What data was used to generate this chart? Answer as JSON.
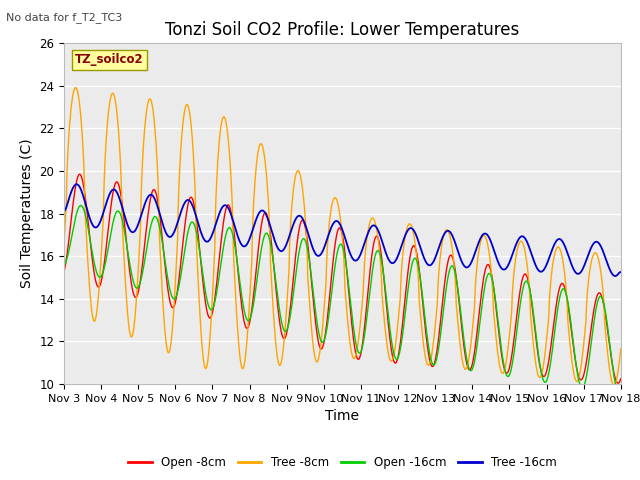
{
  "title": "Tonzi Soil CO2 Profile: Lower Temperatures",
  "subtitle": "No data for f_T2_TC3",
  "dataset_label": "TZ_soilco2",
  "xlabel": "Time",
  "ylabel": "Soil Temperatures (C)",
  "ylim": [
    10,
    26
  ],
  "xlim": [
    0,
    15
  ],
  "xtick_labels": [
    "Nov 3",
    "Nov 4",
    "Nov 5",
    "Nov 6",
    "Nov 7",
    "Nov 8",
    "Nov 9",
    "Nov 10",
    "Nov 11",
    "Nov 12",
    "Nov 13",
    "Nov 14",
    "Nov 15",
    "Nov 16",
    "Nov 17",
    "Nov 18"
  ],
  "xtick_positions": [
    0,
    1,
    2,
    3,
    4,
    5,
    6,
    7,
    8,
    9,
    10,
    11,
    12,
    13,
    14,
    15
  ],
  "colors": {
    "open_8cm": "#FF0000",
    "tree_8cm": "#FFA500",
    "open_16cm": "#00CC00",
    "tree_16cm": "#0000CC"
  },
  "legend_labels": [
    "Open -8cm",
    "Tree -8cm",
    "Open -16cm",
    "Tree -16cm"
  ],
  "plot_bg_color": "#EBEBEB",
  "fig_bg_color": "#FFFFFF",
  "title_fontsize": 12,
  "axis_fontsize": 10,
  "tick_fontsize": 8.5
}
